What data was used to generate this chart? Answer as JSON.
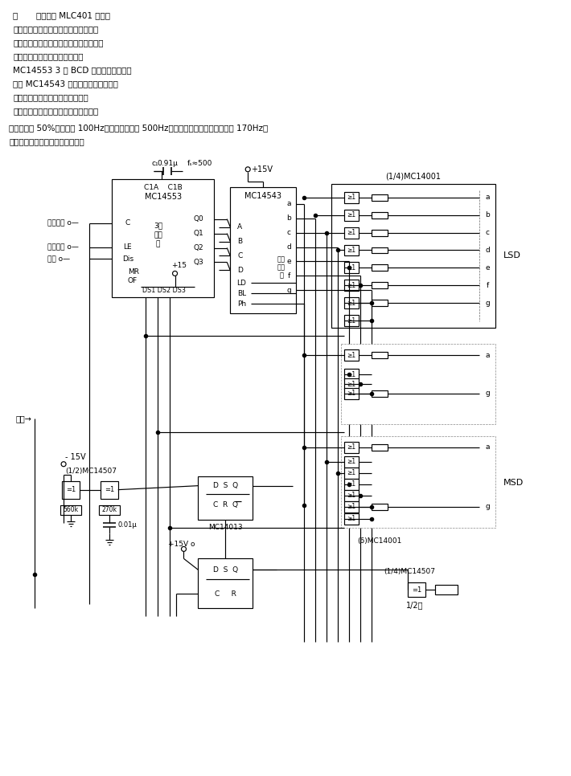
{
  "bg_color": "#ffffff",
  "line_color": "#000000",
  "text_color": "#000000",
  "header_lines": [
    "图       电路采用 MLC401 场效应",
    "液晶显示器。这种显示器比动态散射液",
    "晶显示器更适合于多路转换、计数器、锁",
    "存器、多路转换和扫描电路均在",
    "MC14553 3 位 BCD 计数器内。其输出",
    "供给 MC14543 中的译码器和驱动器。",
    "时钟信号由两个异或门和阻容元件",
    "构成的方波振荡器产生。其信号占空比"
  ],
  "footer_line1": "严格保持为 50%，频率为 100Hz。扫描频率约为 500Hz。产生显示动作的重复频率为 170Hz，",
  "footer_line2": "远远超过可觉察的闪烁变化速度。"
}
